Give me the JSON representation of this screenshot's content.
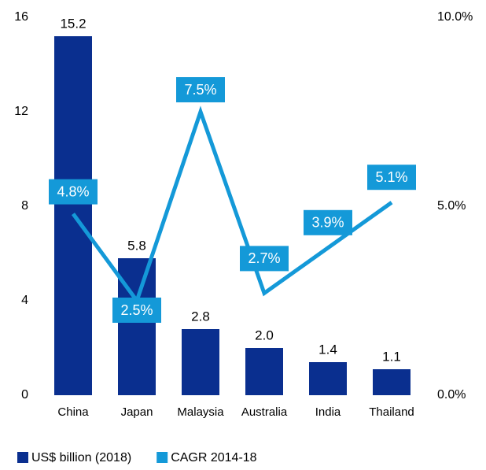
{
  "chart_data": {
    "type": "bar",
    "categories": [
      "China",
      "Japan",
      "Malaysia",
      "Australia",
      "India",
      "Thailand"
    ],
    "series": [
      {
        "name": "US$ billion (2018)",
        "type": "bar",
        "color": "#0a2f8f",
        "values": [
          15.2,
          5.8,
          2.8,
          2.0,
          1.4,
          1.1
        ],
        "value_labels": [
          "15.2",
          "5.8",
          "2.8",
          "2.0",
          "1.4",
          "1.1"
        ]
      },
      {
        "name": "CAGR 2014-18",
        "type": "line",
        "axis": "y2",
        "color": "#1499d8",
        "values": [
          4.8,
          2.5,
          7.5,
          2.7,
          3.9,
          5.1
        ],
        "value_labels": [
          "4.8%",
          "2.5%",
          "7.5%",
          "2.7%",
          "3.9%",
          "5.1%"
        ]
      }
    ],
    "ylim": [
      0,
      16
    ],
    "yticks": [
      0,
      4,
      8,
      12,
      16
    ],
    "y2lim": [
      0,
      10
    ],
    "y2ticks": [
      {
        "value": 0,
        "label": "0.0%"
      },
      {
        "value": 5,
        "label": "5.0%"
      },
      {
        "value": 10,
        "label": "10.0%"
      }
    ],
    "legend": "bottom"
  }
}
